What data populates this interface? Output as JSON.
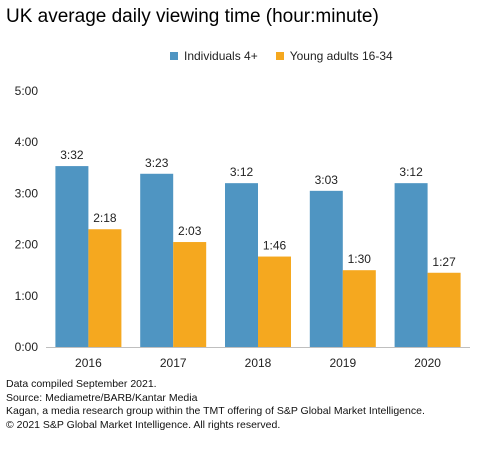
{
  "title": "UK average daily viewing time (hour:minute)",
  "colors": {
    "individuals": "#4f95c2",
    "young": "#f5a81f"
  },
  "footer": {
    "line1": "Data compiled September 2021.",
    "line2": "Source: Mediametre/BARB/Kantar Media",
    "line3": "Kagan, a media research group within the TMT offering of S&P Global Market Intelligence.",
    "line4": "© 2021 S&P Global Market Intelligence. All rights reserved."
  },
  "chart_data": {
    "type": "bar",
    "title": "UK average daily viewing time (hour:minute)",
    "categories": [
      "2016",
      "2017",
      "2018",
      "2019",
      "2020"
    ],
    "series": [
      {
        "name": "Individuals 4+",
        "values": [
          212,
          203,
          192,
          183,
          192
        ],
        "labels": [
          "3:32",
          "3:23",
          "3:12",
          "3:03",
          "3:12"
        ],
        "color": "#4f95c2"
      },
      {
        "name": "Young adults 16-34",
        "values": [
          138,
          123,
          106,
          90,
          87
        ],
        "labels": [
          "2:18",
          "2:03",
          "1:46",
          "1:30",
          "1:27"
        ],
        "color": "#f5a81f"
      }
    ],
    "yticks": [
      "0:00",
      "1:00",
      "2:00",
      "3:00",
      "4:00",
      "5:00"
    ],
    "ylim": [
      0,
      300
    ],
    "unit": "minutes",
    "xlabel": "",
    "ylabel": "",
    "legend": "top-center",
    "grid": false
  }
}
